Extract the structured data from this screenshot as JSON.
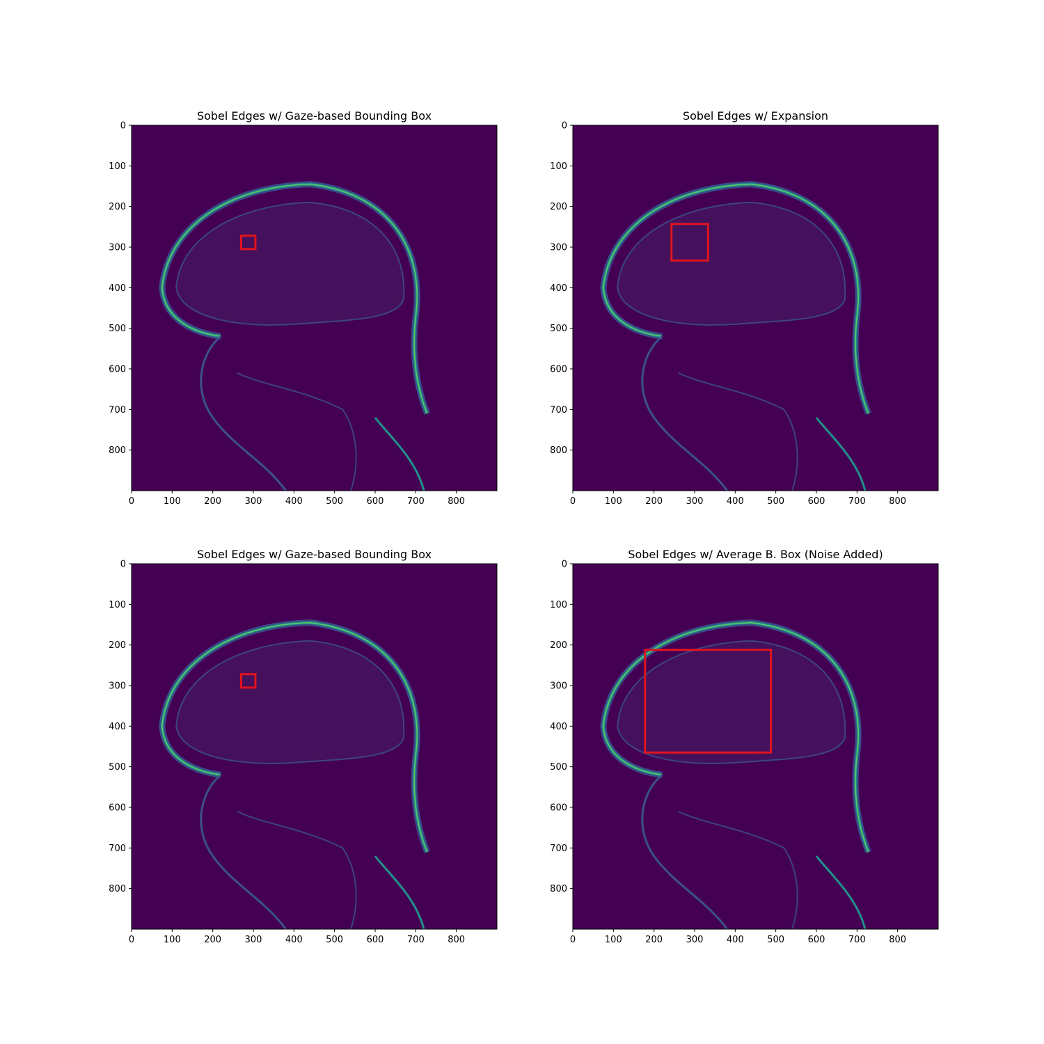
{
  "figure": {
    "background_color": "#ffffff",
    "image_background_color": "#440154",
    "edge_colors": [
      "#3b528b",
      "#21918c",
      "#5ec962"
    ],
    "box_color": "#e0141e"
  },
  "chart_data": [
    {
      "type": "image",
      "title": "Sobel Edges w/ Gaze-based Bounding Box",
      "xlabel": "",
      "ylabel": "",
      "xlim": [
        0,
        900
      ],
      "ylim": [
        900,
        0
      ],
      "xticks": [
        "0",
        "100",
        "200",
        "300",
        "400",
        "500",
        "600",
        "700",
        "800"
      ],
      "yticks": [
        "0",
        "100",
        "200",
        "300",
        "400",
        "500",
        "600",
        "700",
        "800"
      ],
      "colormap": "viridis",
      "bounding_box": {
        "x0": 270,
        "y0": 272,
        "x1": 305,
        "y1": 305
      }
    },
    {
      "type": "image",
      "title": "Sobel Edges w/ Expansion",
      "xlabel": "",
      "ylabel": "",
      "xlim": [
        0,
        900
      ],
      "ylim": [
        900,
        0
      ],
      "xticks": [
        "0",
        "100",
        "200",
        "300",
        "400",
        "500",
        "600",
        "700",
        "800"
      ],
      "yticks": [
        "0",
        "100",
        "200",
        "300",
        "400",
        "500",
        "600",
        "700",
        "800"
      ],
      "colormap": "viridis",
      "bounding_box": {
        "x0": 243,
        "y0": 243,
        "x1": 333,
        "y1": 333
      }
    },
    {
      "type": "image",
      "title": "Sobel Edges w/ Gaze-based Bounding Box",
      "xlabel": "",
      "ylabel": "",
      "xlim": [
        0,
        900
      ],
      "ylim": [
        900,
        0
      ],
      "xticks": [
        "0",
        "100",
        "200",
        "300",
        "400",
        "500",
        "600",
        "700",
        "800"
      ],
      "yticks": [
        "0",
        "100",
        "200",
        "300",
        "400",
        "500",
        "600",
        "700",
        "800"
      ],
      "colormap": "viridis",
      "bounding_box": {
        "x0": 270,
        "y0": 272,
        "x1": 305,
        "y1": 305
      }
    },
    {
      "type": "image",
      "title": "Sobel Edges w/ Average B. Box (Noise Added)",
      "xlabel": "",
      "ylabel": "",
      "xlim": [
        0,
        900
      ],
      "ylim": [
        900,
        0
      ],
      "xticks": [
        "0",
        "100",
        "200",
        "300",
        "400",
        "500",
        "600",
        "700",
        "800"
      ],
      "yticks": [
        "0",
        "100",
        "200",
        "300",
        "400",
        "500",
        "600",
        "700",
        "800"
      ],
      "colormap": "viridis",
      "bounding_box": {
        "x0": 178,
        "y0": 212,
        "x1": 488,
        "y1": 465
      }
    }
  ]
}
